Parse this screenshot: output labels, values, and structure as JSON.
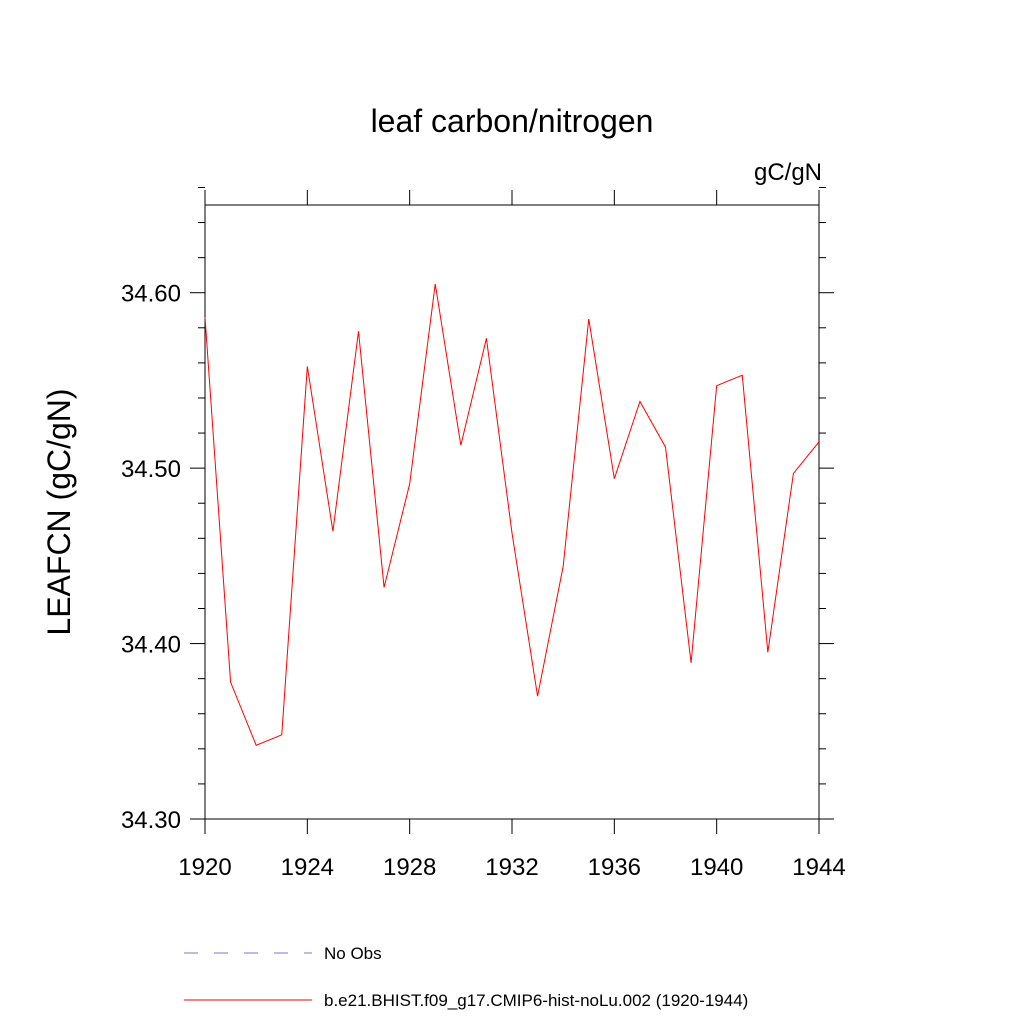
{
  "chart_data": {
    "type": "line",
    "title": "leaf carbon/nitrogen",
    "units": "gC/gN",
    "ylabel": "LEAFCN  (gC/gN)",
    "xlabel": "",
    "xlim": [
      1920,
      1944
    ],
    "ylim": [
      34.3,
      34.65
    ],
    "x_major_ticks": [
      1920,
      1924,
      1928,
      1932,
      1936,
      1940,
      1944
    ],
    "x_tick_labels": [
      "1920",
      "1924",
      "1928",
      "1932",
      "1936",
      "1940",
      "1944"
    ],
    "y_major_ticks": [
      34.3,
      34.4,
      34.5,
      34.6
    ],
    "y_tick_labels": [
      "34.30",
      "34.40",
      "34.50",
      "34.60"
    ],
    "y_minor_step": 0.02,
    "x": [
      1920,
      1921,
      1922,
      1923,
      1924,
      1925,
      1926,
      1927,
      1928,
      1929,
      1930,
      1931,
      1932,
      1933,
      1934,
      1935,
      1936,
      1937,
      1938,
      1939,
      1940,
      1941,
      1942,
      1943,
      1944
    ],
    "series": [
      {
        "name": "b.e21.BHIST.f09_g17.CMIP6-hist-noLu.002 (1920-1944)",
        "color": "#ff0000",
        "style": "solid",
        "values": [
          34.586,
          34.378,
          34.342,
          34.348,
          34.558,
          34.464,
          34.578,
          34.432,
          34.491,
          34.605,
          34.513,
          34.574,
          34.463,
          34.37,
          34.444,
          34.585,
          34.494,
          34.538,
          34.512,
          34.389,
          34.547,
          34.553,
          34.395,
          34.497,
          34.515
        ]
      }
    ],
    "legend": [
      {
        "label": "No Obs",
        "color": "#7777cc",
        "style": "dashed"
      },
      {
        "label": "b.e21.BHIST.f09_g17.CMIP6-hist-noLu.002 (1920-1944)",
        "color": "#ff0000",
        "style": "solid"
      }
    ]
  }
}
